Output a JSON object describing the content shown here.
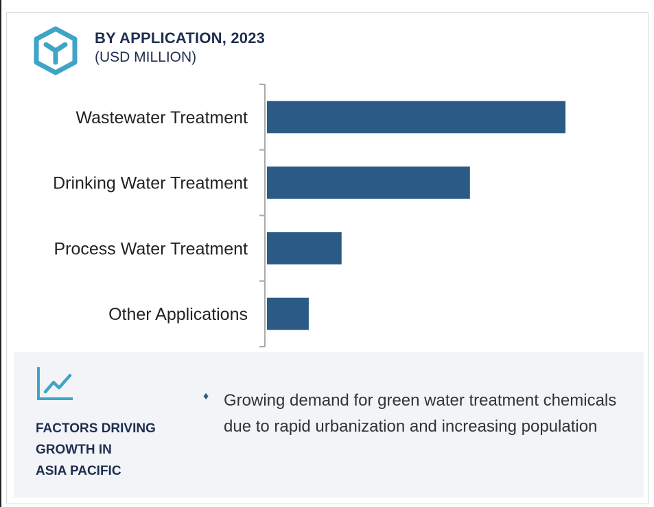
{
  "header": {
    "title": "BY APPLICATION, 2023",
    "subtitle": "(USD MILLION)",
    "icon": "hexagon-y-logo-icon"
  },
  "colors": {
    "bar": "#2c5a86",
    "title": "#1e2e50",
    "icon": "#3ea5c8",
    "panel_bg": "#f2f4f7",
    "axis": "#aaaaaa"
  },
  "chart_data": {
    "type": "bar",
    "orientation": "horizontal",
    "title": "BY APPLICATION, 2023",
    "subtitle": "(USD MILLION)",
    "categories": [
      "Wastewater Treatment",
      "Drinking Water Treatment",
      "Process Water Treatment",
      "Other Applications"
    ],
    "values": [
      100,
      68,
      25,
      14
    ],
    "value_axis_visible": false,
    "value_labels_visible": false,
    "xlim": [
      0,
      100
    ],
    "grid": false,
    "legend": "none"
  },
  "factors": {
    "icon": "trend-chart-icon",
    "title_lines": [
      "FACTORS DRIVING",
      "GROWTH IN",
      "ASIA PACIFIC"
    ],
    "bullet_glyph": "♦",
    "items": [
      "Growing demand for green water treatment chemicals due to rapid urbanization and increasing population"
    ]
  }
}
